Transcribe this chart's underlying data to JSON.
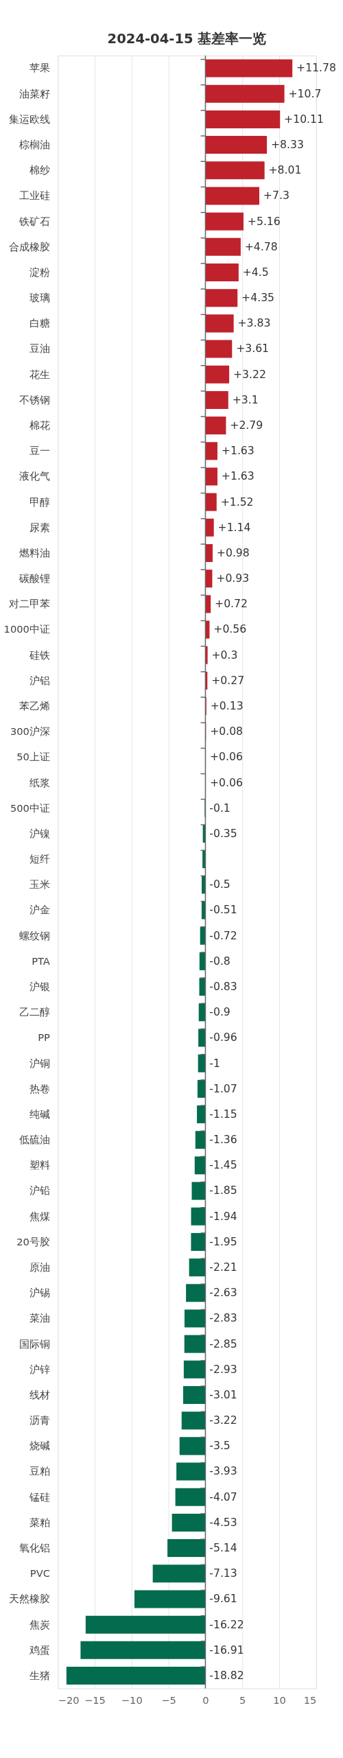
{
  "chart_data": {
    "type": "bar",
    "orientation": "horizontal",
    "title": "2024-04-15 基差率一览",
    "categories": [
      "苹果",
      "油菜籽",
      "集运欧线",
      "棕榈油",
      "棉纱",
      "工业硅",
      "铁矿石",
      "合成橡胶",
      "淀粉",
      "玻璃",
      "白糖",
      "豆油",
      "花生",
      "不锈钢",
      "棉花",
      "豆一",
      "液化气",
      "甲醇",
      "尿素",
      "燃料油",
      "碳酸锂",
      "对二甲苯",
      "1000中证",
      "硅铁",
      "沪铝",
      "苯乙烯",
      "300沪深",
      "50上证",
      "纸浆",
      "500中证",
      "沪镍",
      "短纤",
      "玉米",
      "沪金",
      "螺纹钢",
      "PTA",
      "沪银",
      "乙二醇",
      "PP",
      "沪铜",
      "热卷",
      "纯碱",
      "低硫油",
      "塑料",
      "沪铅",
      "焦煤",
      "20号胶",
      "原油",
      "沪锡",
      "菜油",
      "国际铜",
      "沪锌",
      "线材",
      "沥青",
      "烧碱",
      "豆粕",
      "锰硅",
      "菜粕",
      "氧化铝",
      "PVC",
      "天然橡胶",
      "焦炭",
      "鸡蛋",
      "生猪"
    ],
    "values": [
      11.78,
      10.7,
      10.11,
      8.33,
      8.01,
      7.3,
      5.16,
      4.78,
      4.5,
      4.35,
      3.83,
      3.61,
      3.22,
      3.1,
      2.79,
      1.63,
      1.63,
      1.52,
      1.14,
      0.98,
      0.93,
      0.72,
      0.56,
      0.3,
      0.27,
      0.13,
      0.08,
      0.06,
      0.06,
      -0.1,
      -0.35,
      -0.4,
      -0.5,
      -0.51,
      -0.72,
      -0.8,
      -0.83,
      -0.9,
      -0.96,
      -1,
      -1.07,
      -1.15,
      -1.36,
      -1.45,
      -1.85,
      -1.94,
      -1.95,
      -2.21,
      -2.63,
      -2.83,
      -2.85,
      -2.93,
      -3.01,
      -3.22,
      -3.5,
      -3.93,
      -4.07,
      -4.53,
      -5.14,
      -7.13,
      -9.61,
      -16.22,
      -16.91,
      -18.82
    ],
    "value_labels": [
      "+11.78",
      "+10.7",
      "+10.11",
      "+8.33",
      "+8.01",
      "+7.3",
      "+5.16",
      "+4.78",
      "+4.5",
      "+4.35",
      "+3.83",
      "+3.61",
      "+3.22",
      "+3.1",
      "+2.79",
      "+1.63",
      "+1.63",
      "+1.52",
      "+1.14",
      "+0.98",
      "+0.93",
      "+0.72",
      "+0.56",
      "+0.3",
      "+0.27",
      "+0.13",
      "+0.08",
      "+0.06",
      "+0.06",
      "-0.1",
      "-0.35",
      null,
      "-0.5",
      "-0.51",
      "-0.72",
      "-0.8",
      "-0.83",
      "-0.9",
      "-0.96",
      "-1",
      "-1.07",
      "-1.15",
      "-1.36",
      "-1.45",
      "-1.85",
      "-1.94",
      "-1.95",
      "-2.21",
      "-2.63",
      "-2.83",
      "-2.85",
      "-2.93",
      "-3.01",
      "-3.22",
      "-3.5",
      "-3.93",
      "-4.07",
      "-4.53",
      "-5.14",
      "-7.13",
      "-9.61",
      "-16.22",
      "-16.91",
      "-18.82"
    ],
    "colors": [
      "#c0222c",
      "#c0222c",
      "#c0222c",
      "#c0222c",
      "#c0222c",
      "#c0222c",
      "#c0222c",
      "#c0222c",
      "#c0222c",
      "#c0222c",
      "#c0222c",
      "#c0222c",
      "#c0222c",
      "#c0222c",
      "#c0222c",
      "#c0222c",
      "#c0222c",
      "#c0222c",
      "#c0222c",
      "#c0222c",
      "#c0222c",
      "#c0222c",
      "#c0222c",
      "#c0222c",
      "#c0222c",
      "#c0222c",
      "#c0222c",
      "#c0222c",
      "#c0222c",
      "#046c4e",
      "#046c4e",
      "#046c4e",
      "#046c4e",
      "#046c4e",
      "#046c4e",
      "#046c4e",
      "#046c4e",
      "#046c4e",
      "#046c4e",
      "#046c4e",
      "#046c4e",
      "#046c4e",
      "#046c4e",
      "#046c4e",
      "#046c4e",
      "#046c4e",
      "#046c4e",
      "#046c4e",
      "#046c4e",
      "#046c4e",
      "#046c4e",
      "#046c4e",
      "#046c4e",
      "#046c4e",
      "#046c4e",
      "#046c4e",
      "#046c4e",
      "#046c4e",
      "#046c4e",
      "#046c4e",
      "#046c4e",
      "#046c4e",
      "#046c4e",
      "#046c4e"
    ],
    "xlim": [
      -20,
      15
    ],
    "xticks": [
      -20,
      -15,
      -10,
      -5,
      0,
      5,
      10,
      15
    ],
    "grid": "x"
  }
}
